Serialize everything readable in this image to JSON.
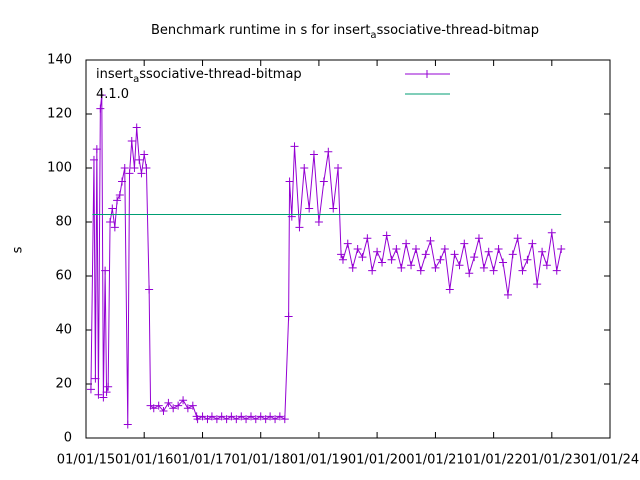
{
  "chart_data": {
    "type": "line",
    "title": "Benchmark runtime in s for insert_associative-thread-bitmap",
    "y_label": "s",
    "xlim": [
      "2015-01-01",
      "2024-01-01"
    ],
    "xticks": [
      {
        "value": "2015-01-01",
        "label": "01/01/15"
      },
      {
        "value": "2016-01-01",
        "label": "01/01/16"
      },
      {
        "value": "2017-01-01",
        "label": "01/01/17"
      },
      {
        "value": "2018-01-01",
        "label": "01/01/18"
      },
      {
        "value": "2019-01-01",
        "label": "01/01/19"
      },
      {
        "value": "2020-01-01",
        "label": "01/01/20"
      },
      {
        "value": "2021-01-01",
        "label": "01/01/21"
      },
      {
        "value": "2022-01-01",
        "label": "01/01/22"
      },
      {
        "value": "2023-01-01",
        "label": "01/01/23"
      },
      {
        "value": "2024-01-01",
        "label": "01/01/24"
      }
    ],
    "ylim": [
      0,
      140
    ],
    "yticks": [
      0,
      20,
      40,
      60,
      80,
      100,
      120,
      140
    ],
    "series": [
      {
        "name": "insert_associative-thread-bitmap",
        "color": "#9400d3",
        "marker": "+",
        "x": [
          "2015-02-01",
          "2015-02-20",
          "2015-03-01",
          "2015-03-10",
          "2015-03-20",
          "2015-04-01",
          "2015-04-10",
          "2015-04-20",
          "2015-05-01",
          "2015-05-10",
          "2015-05-20",
          "2015-06-01",
          "2015-06-15",
          "2015-07-01",
          "2015-07-15",
          "2015-08-01",
          "2015-08-15",
          "2015-09-01",
          "2015-09-20",
          "2015-10-01",
          "2015-10-15",
          "2015-11-01",
          "2015-11-15",
          "2015-12-01",
          "2015-12-15",
          "2016-01-01",
          "2016-01-15",
          "2016-02-01",
          "2016-02-10",
          "2016-03-01",
          "2016-04-01",
          "2016-05-01",
          "2016-06-01",
          "2016-07-01",
          "2016-08-01",
          "2016-09-01",
          "2016-10-01",
          "2016-11-01",
          "2016-11-25",
          "2016-12-01",
          "2017-01-01",
          "2017-02-01",
          "2017-03-01",
          "2017-04-01",
          "2017-05-01",
          "2017-06-01",
          "2017-07-01",
          "2017-08-01",
          "2017-09-01",
          "2017-10-01",
          "2017-11-01",
          "2017-12-01",
          "2018-01-01",
          "2018-02-01",
          "2018-03-01",
          "2018-04-01",
          "2018-05-01",
          "2018-06-01",
          "2018-06-25",
          "2018-07-01",
          "2018-07-15",
          "2018-08-01",
          "2018-09-01",
          "2018-10-01",
          "2018-11-01",
          "2018-12-01",
          "2019-01-01",
          "2019-02-01",
          "2019-03-01",
          "2019-04-01",
          "2019-05-01",
          "2019-05-20",
          "2019-06-01",
          "2019-07-01",
          "2019-08-01",
          "2019-09-01",
          "2019-10-01",
          "2019-11-01",
          "2019-12-01",
          "2020-01-01",
          "2020-02-01",
          "2020-03-01",
          "2020-04-01",
          "2020-05-01",
          "2020-06-01",
          "2020-07-01",
          "2020-08-01",
          "2020-09-01",
          "2020-10-01",
          "2020-11-01",
          "2020-12-01",
          "2021-01-01",
          "2021-02-01",
          "2021-03-01",
          "2021-04-01",
          "2021-05-01",
          "2021-06-01",
          "2021-07-01",
          "2021-08-01",
          "2021-09-01",
          "2021-10-01",
          "2021-11-01",
          "2021-12-01",
          "2022-01-01",
          "2022-02-01",
          "2022-03-01",
          "2022-04-01",
          "2022-05-01",
          "2022-06-01",
          "2022-07-01",
          "2022-08-01",
          "2022-09-01",
          "2022-10-01",
          "2022-11-01",
          "2022-12-01",
          "2023-01-01",
          "2023-02-01",
          "2023-03-01"
        ],
        "values": [
          18,
          103,
          22,
          107,
          16,
          122,
          127,
          15,
          62,
          17,
          19,
          80,
          85,
          78,
          88,
          90,
          95,
          100,
          5,
          98,
          110,
          100,
          115,
          103,
          98,
          105,
          100,
          55,
          12,
          11,
          12,
          10,
          13,
          11,
          12,
          14,
          11,
          12,
          8,
          7,
          8,
          7,
          8,
          7,
          8,
          7,
          8,
          7,
          8,
          7,
          8,
          7,
          8,
          7,
          8,
          7,
          8,
          7,
          45,
          95,
          82,
          108,
          78,
          100,
          85,
          105,
          80,
          95,
          106,
          85,
          100,
          68,
          66,
          72,
          63,
          70,
          67,
          74,
          62,
          69,
          65,
          75,
          66,
          70,
          63,
          72,
          64,
          70,
          62,
          68,
          73,
          63,
          66,
          70,
          55,
          68,
          64,
          72,
          61,
          67,
          74,
          63,
          69,
          62,
          70,
          65,
          53,
          68,
          74,
          62,
          66,
          72,
          57,
          69,
          64,
          76,
          62,
          70
        ]
      },
      {
        "name": "4.1.0",
        "color": "#009e73",
        "x": [
          "2015-02-10",
          "2023-03-01"
        ],
        "values": [
          82.8,
          82.8
        ]
      }
    ]
  }
}
